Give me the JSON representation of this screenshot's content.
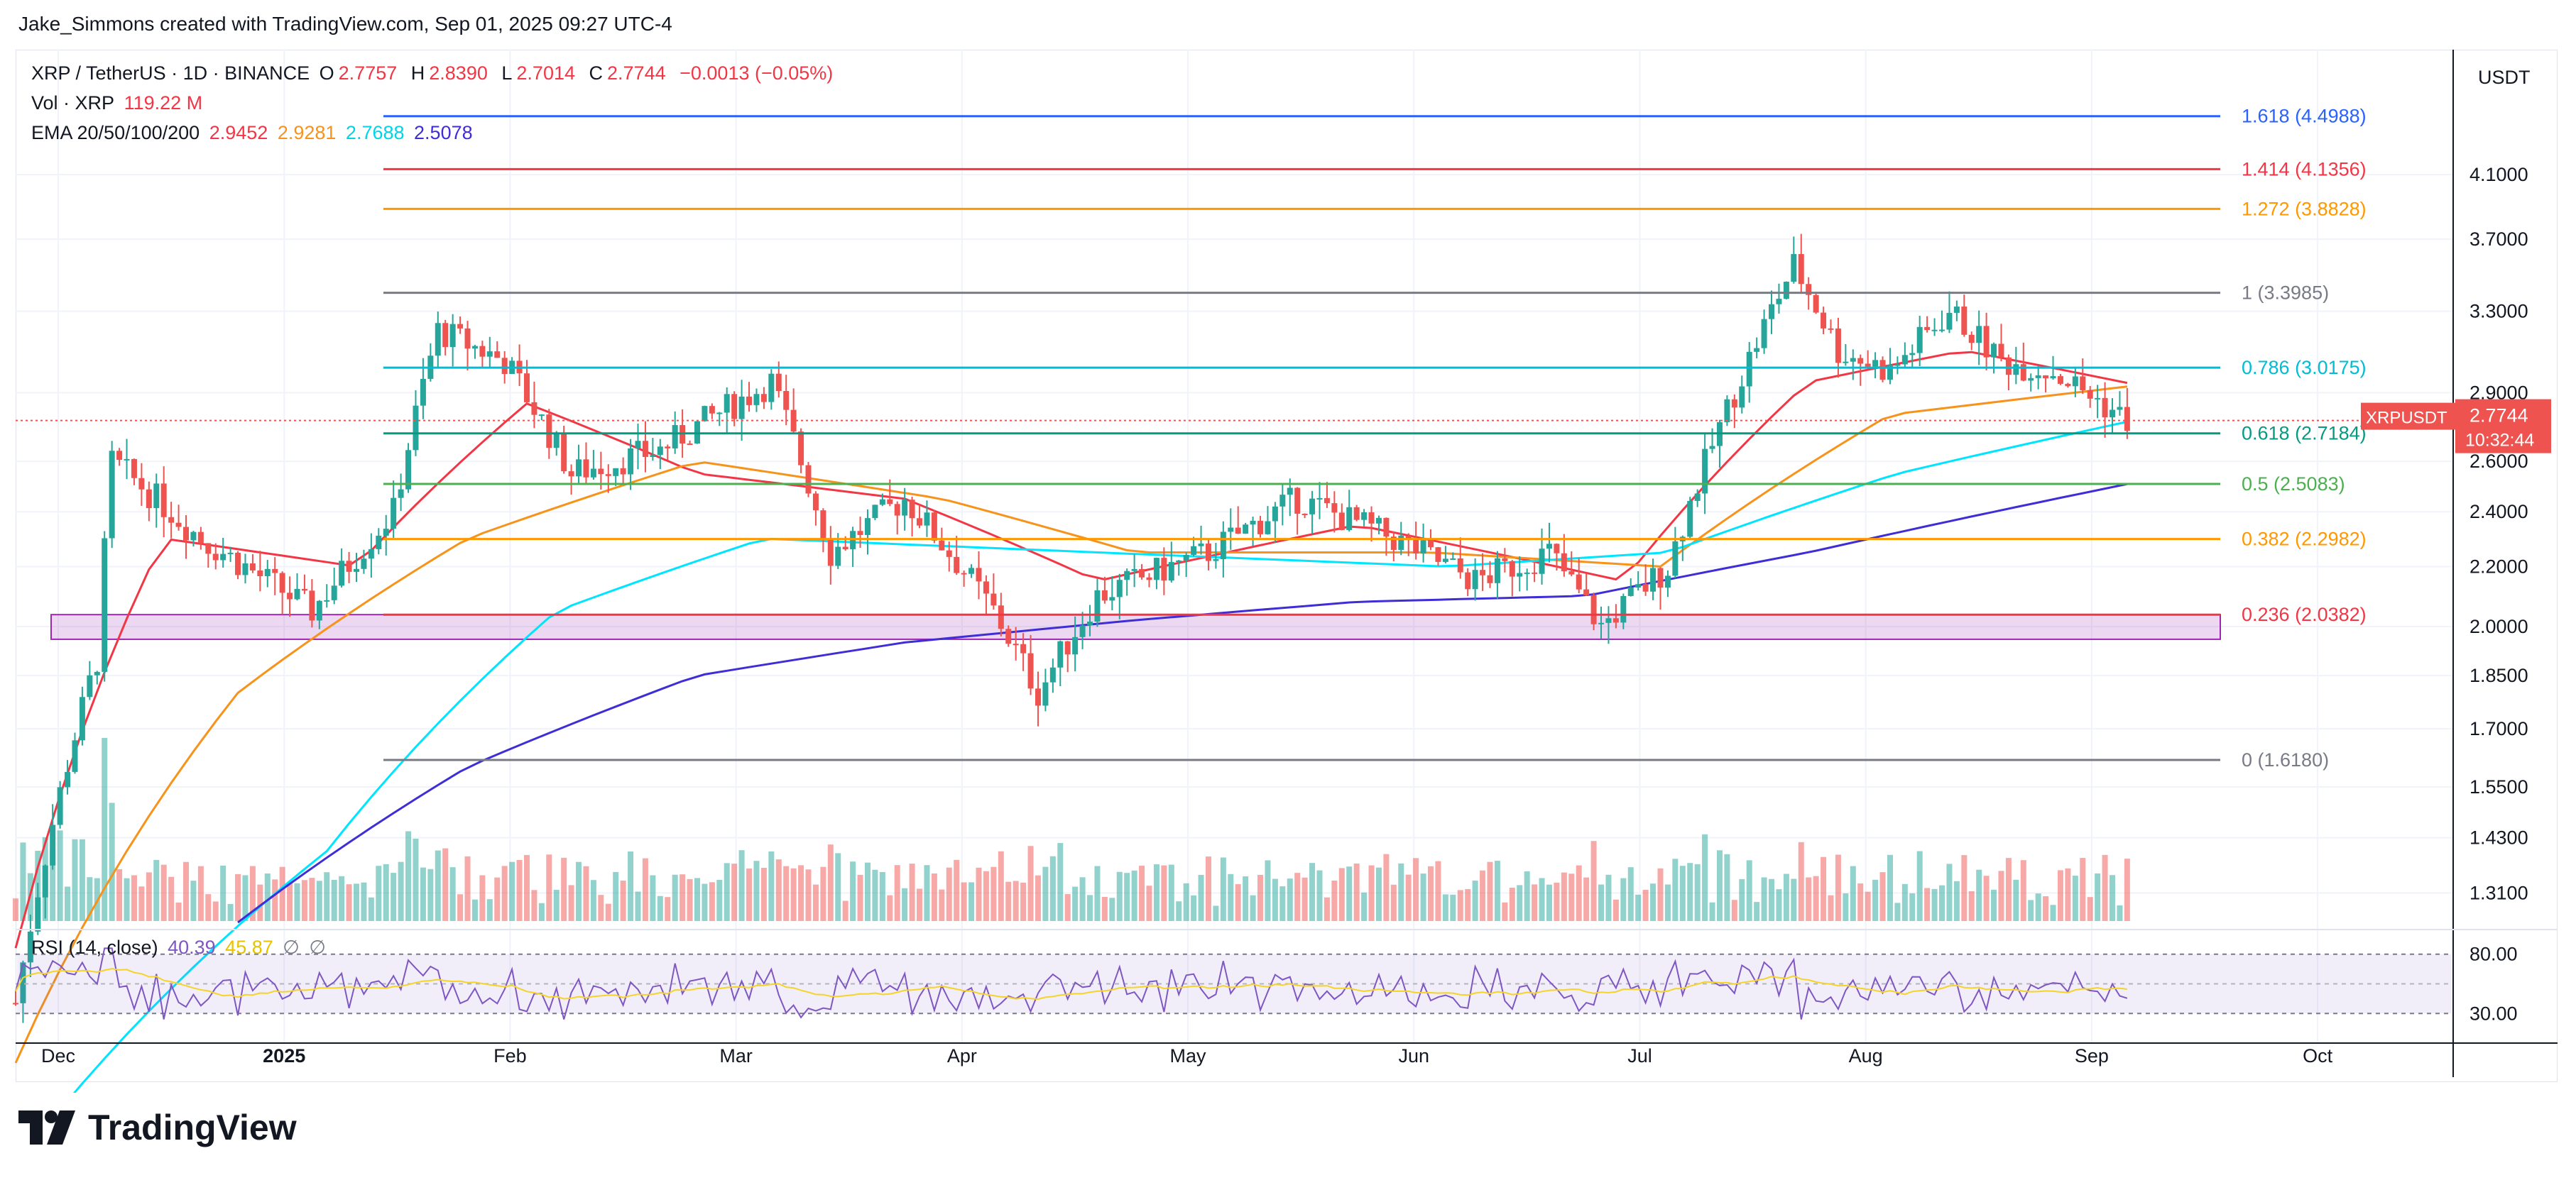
{
  "header": {
    "author_line": "Jake_Simmons created with TradingView.com, Sep 01, 2025 09:27 UTC-4"
  },
  "legend": {
    "symbol_line": "XRP / TetherUS · 1D · BINANCE",
    "o_label": "O",
    "o_value": "2.7757",
    "h_label": "H",
    "h_value": "2.8390",
    "l_label": "L",
    "l_value": "2.7014",
    "c_label": "C",
    "c_value": "2.7744",
    "change": "−0.0013 (−0.05%)",
    "vol_label": "Vol · XRP",
    "vol_value": "119.22 M",
    "ema_label": "EMA 20/50/100/200",
    "ema20": "2.9452",
    "ema50": "2.9281",
    "ema100": "2.7688",
    "ema200": "2.5078",
    "rsi_label": "RSI (14, close)",
    "rsi_value": "40.39",
    "rsi_ma": "45.87",
    "rsi_extra1": "∅",
    "rsi_extra2": "∅"
  },
  "price_axis": {
    "currency": "USDT",
    "ticks": [
      "4.1000",
      "3.7000",
      "3.3000",
      "2.9000",
      "2.6000",
      "2.4000",
      "2.2000",
      "2.0000",
      "1.8500",
      "1.7000",
      "1.5500",
      "1.4300",
      "1.3100"
    ],
    "last_symbol": "XRPUSDT",
    "last_price": "2.7744",
    "countdown": "10:32:44"
  },
  "rsi_axis": {
    "ticks": [
      "80.00",
      "30.00"
    ]
  },
  "time_axis": {
    "ticks": [
      "Dec",
      "2025",
      "Feb",
      "Mar",
      "Apr",
      "May",
      "Jun",
      "Jul",
      "Aug",
      "Sep",
      "Oct"
    ]
  },
  "colors": {
    "up": "#26a69a",
    "down": "#ef5350",
    "ema20": "#f23645",
    "ema50": "#f7931a",
    "ema100": "#00e5ff",
    "ema200": "#3f2ed6",
    "rsi": "#7e57c2",
    "rsi_ma": "#f5d327",
    "support_zone": "#9c27b0"
  },
  "fib_levels": [
    {
      "label": "1.618 (4.4988)",
      "price": 4.4988,
      "color": "#2962ff"
    },
    {
      "label": "1.414 (4.1356)",
      "price": 4.1356,
      "color": "#f23645"
    },
    {
      "label": "1.272 (3.8828)",
      "price": 3.8828,
      "color": "#ff9800"
    },
    {
      "label": "1 (3.3985)",
      "price": 3.3985,
      "color": "#787b86"
    },
    {
      "label": "0.786 (3.0175)",
      "price": 3.0175,
      "color": "#00bcd4"
    },
    {
      "label": "0.618 (2.7184)",
      "price": 2.7184,
      "color": "#089981"
    },
    {
      "label": "0.5 (2.5083)",
      "price": 2.5083,
      "color": "#4caf50"
    },
    {
      "label": "0.382 (2.2982)",
      "price": 2.2982,
      "color": "#ff9800"
    },
    {
      "label": "0.236 (2.0382)",
      "price": 2.0382,
      "color": "#f23645"
    },
    {
      "label": "0 (1.6180)",
      "price": 1.618,
      "color": "#787b86"
    }
  ],
  "chart_data": {
    "type": "line",
    "title": "XRP / TetherUS · 1D · BINANCE",
    "x_range": [
      "2024-11-20",
      "2025-10-15"
    ],
    "price_range": [
      1.25,
      5.0
    ],
    "y_scale": "log",
    "series": [
      {
        "name": "XRPUSDT",
        "x": [
          "2024-11-20",
          "2024-12-01",
          "2024-12-03",
          "2024-12-15",
          "2024-12-30",
          "2025-01-10",
          "2025-01-16",
          "2025-01-25",
          "2025-02-03",
          "2025-02-15",
          "2025-03-02",
          "2025-03-10",
          "2025-03-20",
          "2025-04-01",
          "2025-04-07",
          "2025-04-15",
          "2025-04-30",
          "2025-05-12",
          "2025-05-25",
          "2025-06-05",
          "2025-06-15",
          "2025-06-22",
          "2025-07-01",
          "2025-07-10",
          "2025-07-18",
          "2025-07-24",
          "2025-07-31",
          "2025-08-08",
          "2025-08-15",
          "2025-08-22",
          "2025-09-01"
        ],
        "values": [
          1.1,
          1.9,
          2.6,
          2.3,
          2.05,
          2.4,
          3.2,
          3.05,
          2.55,
          2.65,
          2.95,
          2.25,
          2.45,
          2.05,
          1.8,
          2.1,
          2.25,
          2.45,
          2.3,
          2.15,
          2.25,
          2.0,
          2.2,
          2.9,
          3.55,
          3.1,
          3.0,
          3.3,
          3.05,
          3.0,
          2.7744
        ]
      },
      {
        "name": "EMA 20",
        "x": [
          "2024-11-20",
          "2024-12-10",
          "2025-01-05",
          "2025-01-28",
          "2025-02-20",
          "2025-03-20",
          "2025-04-15",
          "2025-05-20",
          "2025-06-25",
          "2025-07-20",
          "2025-08-10",
          "2025-09-01"
        ],
        "values": [
          1.2,
          2.3,
          2.2,
          2.85,
          2.55,
          2.45,
          2.15,
          2.35,
          2.15,
          2.95,
          3.1,
          2.9452
        ]
      },
      {
        "name": "EMA 50",
        "x": [
          "2024-11-20",
          "2024-12-20",
          "2025-01-20",
          "2025-02-20",
          "2025-03-25",
          "2025-04-20",
          "2025-05-30",
          "2025-06-30",
          "2025-07-31",
          "2025-09-01"
        ],
        "values": [
          1.0,
          1.8,
          2.3,
          2.6,
          2.45,
          2.25,
          2.25,
          2.2,
          2.8,
          2.9281
        ]
      },
      {
        "name": "EMA 100",
        "x": [
          "2024-11-20",
          "2025-01-01",
          "2025-02-01",
          "2025-03-01",
          "2025-04-15",
          "2025-06-01",
          "2025-07-01",
          "2025-08-01",
          "2025-09-01"
        ],
        "values": [
          0.85,
          1.4,
          2.05,
          2.3,
          2.25,
          2.2,
          2.25,
          2.55,
          2.7688
        ]
      },
      {
        "name": "EMA 200",
        "x": [
          "2024-12-20",
          "2025-01-20",
          "2025-02-20",
          "2025-03-20",
          "2025-04-20",
          "2025-05-20",
          "2025-06-20",
          "2025-07-20",
          "2025-09-01"
        ],
        "values": [
          1.25,
          1.6,
          1.85,
          1.95,
          2.02,
          2.08,
          2.1,
          2.25,
          2.5078
        ]
      }
    ],
    "volume_series": {
      "name": "Vol · XRP",
      "last_value": "119.22 M"
    },
    "rsi": {
      "name": "RSI (14, close)",
      "last_value": 40.39,
      "ma_value": 45.87,
      "bands": [
        30,
        80
      ]
    },
    "support_zone": {
      "from_price": 1.96,
      "to_price": 2.0382
    }
  }
}
